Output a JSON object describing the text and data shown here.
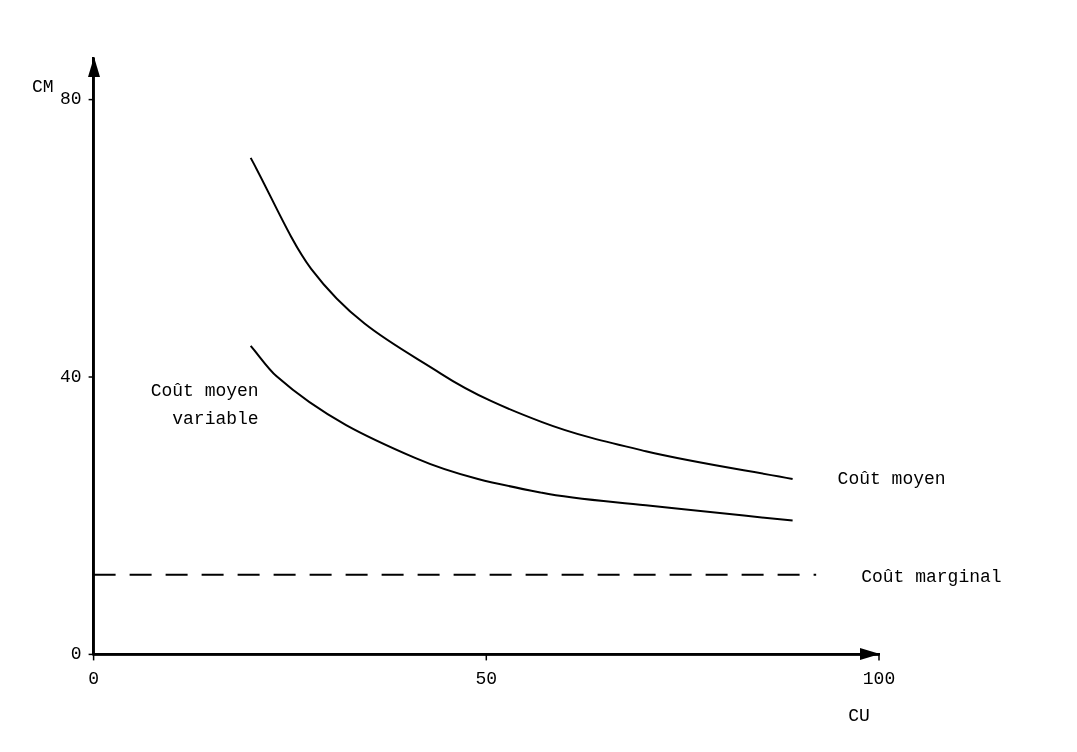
{
  "chart_data": {
    "type": "line",
    "xlabel": "CU",
    "ylabel": "CM",
    "xlim": [
      0,
      100
    ],
    "xticks": [
      0,
      50,
      100
    ],
    "ylim": [
      0,
      86
    ],
    "yticks": [
      0,
      40,
      80
    ],
    "grid": false,
    "legend": false,
    "marker": "none",
    "series": [
      {
        "name": "Coût moyen",
        "color": "#000000",
        "line_style": "solid",
        "x": [
          20,
          27.7,
          44.2,
          57.1,
          70.3,
          89
        ],
        "values": [
          71.6,
          55.6,
          40.5,
          33.5,
          29.3,
          25.3
        ]
      },
      {
        "name": "Coût moyen variable",
        "color": "#000000",
        "line_style": "solid",
        "x": [
          20,
          23.3,
          41,
          57.1,
          70.3,
          89
        ],
        "values": [
          44.5,
          40.1,
          28.3,
          23.3,
          21.5,
          19.3
        ]
      },
      {
        "name": "Coût marginal",
        "color": "#000000",
        "line_style": "dashed",
        "x": [
          0,
          92
        ],
        "values": [
          11.5,
          11.5
        ]
      }
    ]
  }
}
